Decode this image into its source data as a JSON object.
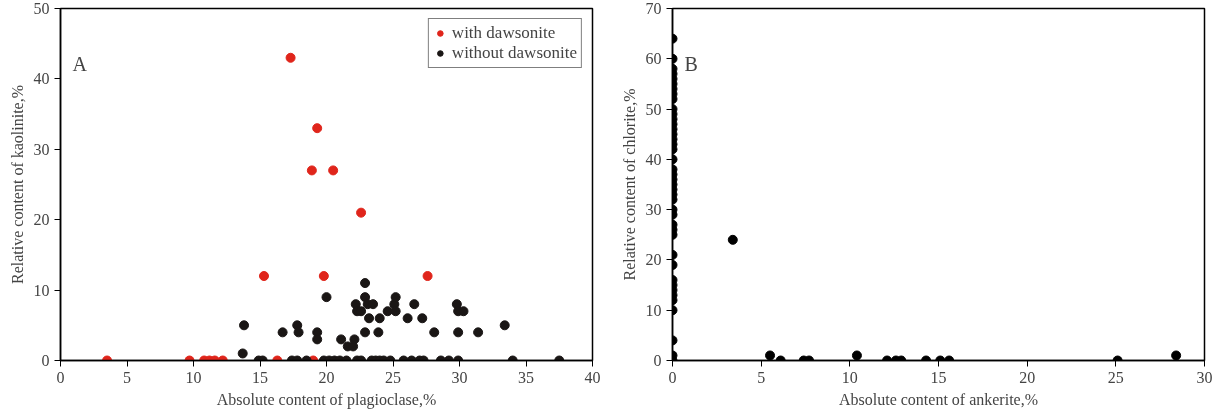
{
  "chart_data": [
    {
      "type": "scatter",
      "xlabel": "Absolute content of plagioclase,%",
      "ylabel": "Relative content of kaolinite,%",
      "annotations": [
        "A"
      ],
      "xlim": [
        0,
        40
      ],
      "xticks": [
        0,
        5,
        10,
        15,
        20,
        25,
        30,
        35,
        40
      ],
      "ylim": [
        0,
        50
      ],
      "yticks": [
        0,
        10,
        20,
        30,
        40,
        50
      ],
      "grid": false,
      "legend": "top right",
      "marker": "circle",
      "series": [
        {
          "name": "with dawsonite",
          "color": "#e0251b",
          "x": [
            3.5,
            9.7,
            10.8,
            11.2,
            11.6,
            12.2,
            16.3,
            19.0,
            15.3,
            19.8,
            27.6,
            22.6,
            18.9,
            20.5,
            19.3,
            17.3
          ],
          "values": [
            0,
            0,
            0,
            0,
            0,
            0,
            0,
            0,
            12,
            12,
            12,
            21,
            27,
            27,
            33,
            43
          ]
        },
        {
          "name": "without dawsonite",
          "color": "#1a1615",
          "x": [
            14.9,
            15.2,
            17.4,
            17.8,
            18.5,
            19.8,
            20.2,
            20.6,
            21.0,
            21.5,
            22.3,
            22.6,
            23.4,
            23.7,
            24.0,
            24.3,
            24.8,
            25.8,
            26.4,
            27.0,
            27.3,
            28.6,
            29.2,
            29.9,
            34.0,
            37.5,
            13.7,
            13.8,
            16.7,
            17.8,
            17.9,
            19.3,
            19.3,
            20.0,
            21.1,
            21.6,
            22.0,
            22.1,
            22.2,
            22.3,
            22.6,
            22.9,
            22.9,
            23.1,
            23.5,
            22.9,
            23.2,
            23.9,
            24.0,
            24.6,
            25.1,
            25.2,
            25.2,
            26.1,
            26.6,
            27.2,
            28.1,
            29.8,
            29.9,
            30.3,
            29.9,
            31.4,
            33.4
          ],
          "values": [
            0,
            0,
            0,
            0,
            0,
            0,
            0,
            0,
            0,
            0,
            0,
            0,
            0,
            0,
            0,
            0,
            0,
            0,
            0,
            0,
            0,
            0,
            0,
            0,
            0,
            0,
            1,
            5,
            4,
            5,
            4,
            4,
            3,
            9,
            3,
            2,
            2,
            3,
            8,
            7,
            7,
            11,
            9,
            8,
            8,
            4,
            6,
            4,
            6,
            7,
            8,
            9,
            7,
            6,
            8,
            6,
            4,
            8,
            7,
            7,
            4,
            4,
            5
          ]
        }
      ]
    },
    {
      "type": "scatter",
      "xlabel": "Absolute content of ankerite,%",
      "ylabel": "Relative content of chlorite,%",
      "annotations": [
        "B"
      ],
      "xlim": [
        0,
        30
      ],
      "xticks": [
        0,
        5,
        10,
        15,
        20,
        25,
        30
      ],
      "ylim": [
        0,
        70
      ],
      "yticks": [
        0,
        10,
        20,
        30,
        40,
        50,
        60,
        70
      ],
      "grid": false,
      "marker": "circle",
      "series": [
        {
          "color": "#000000",
          "x": [
            0,
            0,
            0,
            0,
            0,
            0,
            0,
            0,
            0,
            0,
            0,
            0,
            0,
            0,
            0,
            0,
            0,
            0,
            0,
            0,
            0,
            0,
            0,
            0,
            0,
            0,
            0,
            0,
            0,
            0,
            0,
            0,
            0,
            0,
            0,
            0,
            0,
            0,
            0,
            0,
            0,
            0,
            3.4,
            5.5,
            6.1,
            7.4,
            7.7,
            10.4,
            12.1,
            12.6,
            12.9,
            14.3,
            15.1,
            15.6,
            25.1,
            28.4
          ],
          "values": [
            0,
            1,
            4,
            10,
            12,
            13,
            14,
            15,
            16,
            19,
            21,
            25,
            26,
            27,
            29,
            30,
            32,
            33,
            34,
            35,
            36,
            37,
            38,
            40,
            42,
            43,
            44,
            45,
            46,
            47,
            48,
            49,
            50,
            52,
            53,
            54,
            55,
            56,
            57,
            58,
            60,
            64,
            24,
            1,
            0,
            0,
            0,
            1,
            0,
            0,
            0,
            0,
            0,
            0,
            0,
            1
          ]
        }
      ]
    }
  ]
}
